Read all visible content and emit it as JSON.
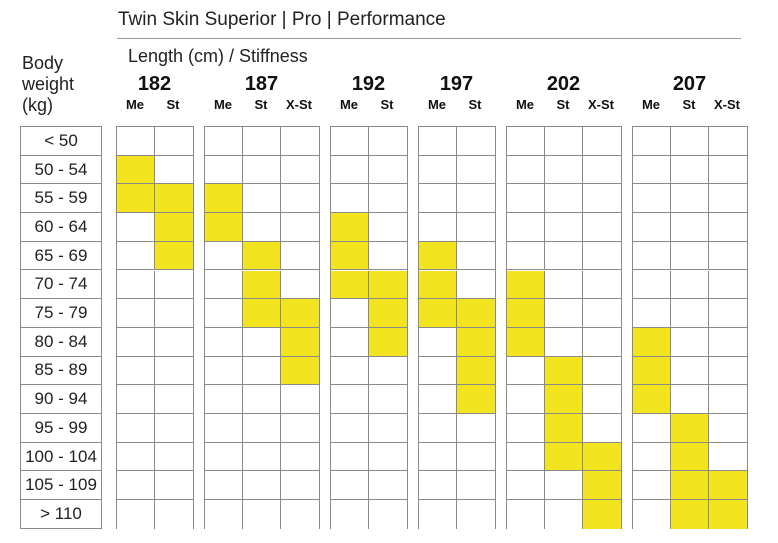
{
  "title": "Twin Skin Superior | Pro | Performance",
  "subtitle": "Length (cm) / Stiffness",
  "weight_header": [
    "Body",
    "weight",
    "(kg)"
  ],
  "highlight_color": "#f2e51f",
  "weight_classes": [
    "< 50",
    "50 - 54",
    "55 - 59",
    "60 - 64",
    "65 - 69",
    "70 - 74",
    "75 - 79",
    "80 - 84",
    "85 - 89",
    "90 - 94",
    "95 - 99",
    "100 - 104",
    "105 - 109",
    "> 110"
  ],
  "lengths": [
    {
      "length": "182",
      "stiffness": [
        "Me",
        "St"
      ],
      "highlights": [
        [
          1,
          2
        ],
        [
          2,
          3,
          4
        ]
      ]
    },
    {
      "length": "187",
      "stiffness": [
        "Me",
        "St",
        "X-St"
      ],
      "highlights": [
        [
          2,
          3
        ],
        [
          4,
          5,
          6
        ],
        [
          6,
          7,
          8
        ]
      ]
    },
    {
      "length": "192",
      "stiffness": [
        "Me",
        "St"
      ],
      "highlights": [
        [
          3,
          4,
          5
        ],
        [
          5,
          6,
          7
        ]
      ]
    },
    {
      "length": "197",
      "stiffness": [
        "Me",
        "St"
      ],
      "highlights": [
        [
          4,
          5,
          6
        ],
        [
          6,
          7,
          8,
          9
        ]
      ]
    },
    {
      "length": "202",
      "stiffness": [
        "Me",
        "St",
        "X-St"
      ],
      "highlights": [
        [
          5,
          6,
          7
        ],
        [
          8,
          9,
          10,
          11
        ],
        [
          11,
          12,
          13
        ]
      ]
    },
    {
      "length": "207",
      "stiffness": [
        "Me",
        "St",
        "X-St"
      ],
      "highlights": [
        [
          7,
          8,
          9
        ],
        [
          10,
          11,
          12,
          13
        ],
        [
          12,
          13
        ]
      ]
    }
  ]
}
